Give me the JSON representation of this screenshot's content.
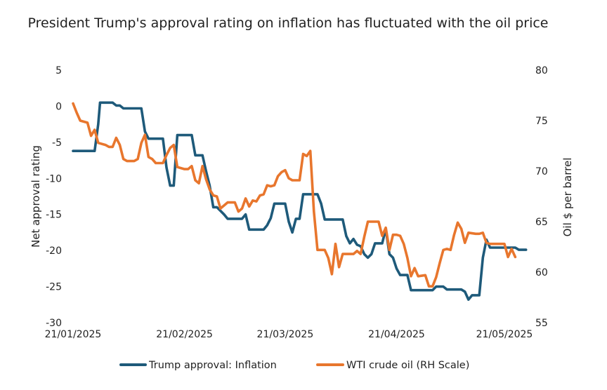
{
  "chart_data": {
    "type": "line",
    "title": "President Trump's approval rating on inflation has fluctuated with the oil price",
    "ylabel": "Net approval rating",
    "y2label": "Oil $ per barrel",
    "ylim": [
      -30,
      5
    ],
    "y2lim": [
      55,
      80
    ],
    "yticks": [
      "5",
      "0",
      "-5",
      "-10",
      "-15",
      "-20",
      "-25",
      "-30"
    ],
    "y2ticks": [
      "80",
      "75",
      "70",
      "65",
      "60",
      "55"
    ],
    "xticks": [
      {
        "day": 0,
        "label": "21/01/2025"
      },
      {
        "day": 31,
        "label": "21/02/2025"
      },
      {
        "day": 59,
        "label": "21/03/2025"
      },
      {
        "day": 90,
        "label": "21/04/2025"
      },
      {
        "day": 120,
        "label": "21/05/2025"
      }
    ],
    "xlim": [
      0,
      126
    ],
    "legend": "bottom",
    "series": [
      {
        "name": "Trump approval: Inflation",
        "axis": "left",
        "color": "#1e5a7a",
        "points": [
          [
            0,
            -6.2
          ],
          [
            6,
            -6.2
          ],
          [
            7,
            -2.5
          ],
          [
            7.5,
            0.5
          ],
          [
            11,
            0.5
          ],
          [
            12,
            0.1
          ],
          [
            13,
            0.1
          ],
          [
            14,
            -0.3
          ],
          [
            19,
            -0.3
          ],
          [
            20,
            -3.5
          ],
          [
            21,
            -4.5
          ],
          [
            25,
            -4.5
          ],
          [
            26,
            -8.5
          ],
          [
            27,
            -11
          ],
          [
            28,
            -11
          ],
          [
            29,
            -4
          ],
          [
            33,
            -4
          ],
          [
            34,
            -6.8
          ],
          [
            36,
            -6.8
          ],
          [
            37,
            -9
          ],
          [
            38,
            -11
          ],
          [
            39,
            -14
          ],
          [
            40,
            -14
          ],
          [
            42,
            -15
          ],
          [
            43,
            -15.6
          ],
          [
            46,
            -15.6
          ],
          [
            47,
            -15.6
          ],
          [
            48,
            -15
          ],
          [
            49,
            -17.1
          ],
          [
            53,
            -17.1
          ],
          [
            54,
            -16.5
          ],
          [
            55,
            -15.5
          ],
          [
            56,
            -13.5
          ],
          [
            59,
            -13.5
          ],
          [
            60,
            -16
          ],
          [
            61,
            -17.5
          ],
          [
            62,
            -15.6
          ],
          [
            63,
            -15.6
          ],
          [
            64,
            -12.2
          ],
          [
            68,
            -12.2
          ],
          [
            69,
            -13.5
          ],
          [
            70,
            -15.7
          ],
          [
            75,
            -15.7
          ],
          [
            76,
            -18
          ],
          [
            77,
            -19
          ],
          [
            78,
            -18.4
          ],
          [
            79,
            -19.2
          ],
          [
            80,
            -19.4
          ],
          [
            81,
            -20.5
          ],
          [
            82,
            -21
          ],
          [
            83,
            -20.5
          ],
          [
            84,
            -19
          ],
          [
            86,
            -19
          ],
          [
            87,
            -17
          ],
          [
            88,
            -20.5
          ],
          [
            89,
            -21
          ],
          [
            90,
            -22.5
          ],
          [
            91,
            -23.4
          ],
          [
            93,
            -23.4
          ],
          [
            94,
            -25.5
          ],
          [
            100,
            -25.5
          ],
          [
            101,
            -25
          ],
          [
            102,
            -25
          ],
          [
            103,
            -25
          ],
          [
            104,
            -25.4
          ],
          [
            108,
            -25.4
          ],
          [
            109,
            -25.7
          ],
          [
            110,
            -26.8
          ],
          [
            111,
            -26.2
          ],
          [
            113,
            -26.2
          ],
          [
            114,
            -21
          ],
          [
            115,
            -18.5
          ],
          [
            116,
            -19.6
          ],
          [
            123,
            -19.6
          ],
          [
            124,
            -19.9
          ],
          [
            126,
            -19.9
          ]
        ]
      },
      {
        "name": "WTI crude oil (RH Scale)",
        "axis": "right",
        "color": "#e8762d",
        "points": [
          [
            0,
            76.7
          ],
          [
            1,
            75.8
          ],
          [
            2,
            75
          ],
          [
            4,
            74.8
          ],
          [
            5,
            73.5
          ],
          [
            6,
            74.1
          ],
          [
            7,
            72.8
          ],
          [
            9,
            72.6
          ],
          [
            10,
            72.4
          ],
          [
            11,
            72.4
          ],
          [
            12,
            73.3
          ],
          [
            13,
            72.6
          ],
          [
            14,
            71.2
          ],
          [
            15,
            71
          ],
          [
            17,
            71
          ],
          [
            18,
            71.2
          ],
          [
            19,
            72.8
          ],
          [
            20,
            73.6
          ],
          [
            21,
            71.4
          ],
          [
            22,
            71.2
          ],
          [
            23,
            70.8
          ],
          [
            25,
            70.8
          ],
          [
            26,
            71.6
          ],
          [
            27,
            72.3
          ],
          [
            28,
            72.6
          ],
          [
            29,
            70.4
          ],
          [
            31,
            70.2
          ],
          [
            32,
            70.2
          ],
          [
            33,
            70.5
          ],
          [
            34,
            69.1
          ],
          [
            35,
            68.8
          ],
          [
            36,
            70.5
          ],
          [
            37,
            69.2
          ],
          [
            38,
            68.2
          ],
          [
            39,
            67.6
          ],
          [
            40,
            67.5
          ],
          [
            41,
            66.3
          ],
          [
            43,
            66.9
          ],
          [
            45,
            66.9
          ],
          [
            46,
            66.0
          ],
          [
            47,
            66.3
          ],
          [
            48,
            67.3
          ],
          [
            49,
            66.5
          ],
          [
            50,
            67.1
          ],
          [
            51,
            67.0
          ],
          [
            52,
            67.6
          ],
          [
            53,
            67.7
          ],
          [
            54,
            68.6
          ],
          [
            55,
            68.5
          ],
          [
            56,
            68.6
          ],
          [
            57,
            69.5
          ],
          [
            58,
            69.9
          ],
          [
            59,
            70.1
          ],
          [
            60,
            69.3
          ],
          [
            61,
            69.1
          ],
          [
            63,
            69.1
          ],
          [
            64,
            71.7
          ],
          [
            65,
            71.5
          ],
          [
            66,
            72
          ],
          [
            67,
            66
          ],
          [
            68,
            62.2
          ],
          [
            70,
            62.2
          ],
          [
            71,
            61.4
          ],
          [
            72,
            59.8
          ],
          [
            73,
            62.8
          ],
          [
            74,
            60.5
          ],
          [
            75,
            61.8
          ],
          [
            76,
            61.8
          ],
          [
            78,
            61.8
          ],
          [
            79,
            62.1
          ],
          [
            80,
            61.8
          ],
          [
            81,
            63.5
          ],
          [
            82,
            65
          ],
          [
            85,
            65
          ],
          [
            86,
            63.6
          ],
          [
            87,
            64.4
          ],
          [
            88,
            62.2
          ],
          [
            89,
            63.7
          ],
          [
            90,
            63.7
          ],
          [
            91,
            63.6
          ],
          [
            92,
            62.8
          ],
          [
            93,
            61.4
          ],
          [
            94,
            59.6
          ],
          [
            95,
            60.4
          ],
          [
            96,
            59.6
          ],
          [
            98,
            59.7
          ],
          [
            99,
            58.6
          ],
          [
            100,
            58.6
          ],
          [
            101,
            59.5
          ],
          [
            102,
            60.9
          ],
          [
            103,
            62.2
          ],
          [
            104,
            62.3
          ],
          [
            105,
            62.2
          ],
          [
            106,
            63.7
          ],
          [
            107,
            64.9
          ],
          [
            108,
            64.3
          ],
          [
            109,
            62.9
          ],
          [
            110,
            63.9
          ],
          [
            112,
            63.8
          ],
          [
            113,
            63.8
          ],
          [
            114,
            63.9
          ],
          [
            115,
            62.9
          ],
          [
            116,
            62.8
          ],
          [
            120,
            62.8
          ],
          [
            121,
            61.5
          ],
          [
            122,
            62.3
          ],
          [
            123,
            61.5
          ]
        ]
      }
    ]
  }
}
